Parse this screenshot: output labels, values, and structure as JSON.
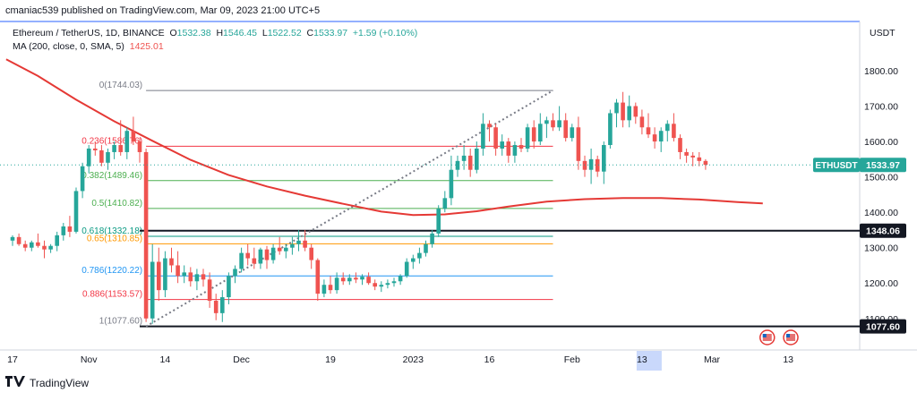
{
  "publisher": "cmaniac539 published on TradingView.com, Mar 09, 2023 21:00 UTC+5",
  "legend": {
    "symbol": "Ethereum / TetherUS, 1D, BINANCE",
    "o_label": "O",
    "o": "1532.38",
    "h_label": "H",
    "h": "1546.45",
    "l_label": "L",
    "l": "1522.52",
    "c_label": "C",
    "c": "1533.97",
    "change": "+1.59 (+0.10%)",
    "ma_label": "MA (200, close, 0, SMA, 5)",
    "ma_value": "1425.01"
  },
  "currency": "USDT",
  "footer_brand": "TradingView",
  "colors": {
    "up": "#26a69a",
    "down": "#ef5350",
    "ma": "#e53935",
    "axis": "#131722",
    "grid": "#f0f3fa"
  },
  "chart_data": {
    "type": "candlestick",
    "ylim": [
      1050,
      1850
    ],
    "y_ticks": [
      "1800.00",
      "1700.00",
      "1600.00",
      "1500.00",
      "1400.00",
      "1300.00",
      "1200.00",
      "1100.00"
    ],
    "y_tick_values": [
      1800,
      1700,
      1600,
      1500,
      1400,
      1300,
      1200,
      1100
    ],
    "x_ticks": [
      "17",
      "Nov",
      "14",
      "Dec",
      "19",
      "2023",
      "16",
      "Feb",
      "13",
      "Mar",
      "13"
    ],
    "x_tick_index": [
      0,
      12,
      24,
      36,
      50,
      63,
      75,
      88,
      99,
      110,
      122
    ],
    "last_price_label": "ETHUSDT",
    "last_price": "1533.97",
    "horizontal_lines": [
      {
        "label": "1348.06",
        "value": 1348.06
      },
      {
        "label": "1077.60",
        "value": 1077.6
      }
    ],
    "fibonacci": {
      "start_index": 21,
      "end_index": 85,
      "levels": [
        {
          "label": "0(1744.03)",
          "ratio": 0,
          "value": 1744.03,
          "color": "#787b86"
        },
        {
          "label": "0.236(1586.76)",
          "ratio": 0.236,
          "value": 1586.76,
          "color": "#f23645"
        },
        {
          "label": "0.382(1489.46)",
          "ratio": 0.382,
          "value": 1489.46,
          "color": "#4caf50"
        },
        {
          "label": "0.5(1410.82)",
          "ratio": 0.5,
          "value": 1410.82,
          "color": "#4caf50"
        },
        {
          "label": "0.618(1332.18)",
          "ratio": 0.618,
          "value": 1332.18,
          "color": "#089981"
        },
        {
          "label": "0.65(1310.85)",
          "ratio": 0.65,
          "value": 1310.85,
          "color": "#ff9800"
        },
        {
          "label": "0.786(1220.22)",
          "ratio": 0.786,
          "value": 1220.22,
          "color": "#2196f3"
        },
        {
          "label": "0.886(1153.57)",
          "ratio": 0.886,
          "value": 1153.57,
          "color": "#f23645"
        },
        {
          "label": "1(1077.60)",
          "ratio": 1,
          "value": 1077.6,
          "color": "#787b86"
        }
      ]
    },
    "trend_line": {
      "from": [
        21,
        1077.6
      ],
      "to": [
        85,
        1744.03
      ]
    },
    "ma_series": [
      {
        "i": -1,
        "v": 1832
      },
      {
        "i": 4,
        "v": 1785
      },
      {
        "i": 10,
        "v": 1718
      },
      {
        "i": 16,
        "v": 1657
      },
      {
        "i": 22,
        "v": 1602
      },
      {
        "i": 28,
        "v": 1548
      },
      {
        "i": 34,
        "v": 1505
      },
      {
        "i": 40,
        "v": 1473
      },
      {
        "i": 46,
        "v": 1447
      },
      {
        "i": 52,
        "v": 1424
      },
      {
        "i": 58,
        "v": 1402
      },
      {
        "i": 63,
        "v": 1392
      },
      {
        "i": 68,
        "v": 1394
      },
      {
        "i": 73,
        "v": 1403
      },
      {
        "i": 78,
        "v": 1416
      },
      {
        "i": 84,
        "v": 1430
      },
      {
        "i": 90,
        "v": 1437
      },
      {
        "i": 96,
        "v": 1440
      },
      {
        "i": 102,
        "v": 1440
      },
      {
        "i": 108,
        "v": 1436
      },
      {
        "i": 114,
        "v": 1429
      },
      {
        "i": 118,
        "v": 1425
      }
    ],
    "candles": [
      [
        1320,
        1335,
        1305,
        1330
      ],
      [
        1330,
        1340,
        1305,
        1310
      ],
      [
        1310,
        1320,
        1290,
        1300
      ],
      [
        1300,
        1320,
        1290,
        1315
      ],
      [
        1315,
        1340,
        1300,
        1305
      ],
      [
        1305,
        1320,
        1270,
        1295
      ],
      [
        1295,
        1310,
        1285,
        1305
      ],
      [
        1305,
        1345,
        1290,
        1335
      ],
      [
        1335,
        1370,
        1320,
        1360
      ],
      [
        1360,
        1390,
        1330,
        1345
      ],
      [
        1345,
        1470,
        1340,
        1460
      ],
      [
        1460,
        1540,
        1440,
        1530
      ],
      [
        1530,
        1590,
        1510,
        1580
      ],
      [
        1580,
        1600,
        1560,
        1575
      ],
      [
        1575,
        1590,
        1530,
        1540
      ],
      [
        1540,
        1580,
        1520,
        1570
      ],
      [
        1570,
        1600,
        1550,
        1590
      ],
      [
        1590,
        1660,
        1560,
        1570
      ],
      [
        1570,
        1640,
        1550,
        1630
      ],
      [
        1630,
        1670,
        1590,
        1600
      ],
      [
        1600,
        1610,
        1540,
        1570
      ],
      [
        1570,
        1580,
        1090,
        1100
      ],
      [
        1100,
        1310,
        1085,
        1260
      ],
      [
        1260,
        1300,
        1150,
        1180
      ],
      [
        1180,
        1290,
        1160,
        1270
      ],
      [
        1270,
        1300,
        1230,
        1250
      ],
      [
        1250,
        1290,
        1200,
        1220
      ],
      [
        1220,
        1250,
        1200,
        1230
      ],
      [
        1230,
        1245,
        1190,
        1205
      ],
      [
        1205,
        1240,
        1180,
        1225
      ],
      [
        1225,
        1240,
        1190,
        1210
      ],
      [
        1210,
        1230,
        1130,
        1150
      ],
      [
        1150,
        1170,
        1095,
        1115
      ],
      [
        1115,
        1180,
        1090,
        1160
      ],
      [
        1160,
        1230,
        1140,
        1220
      ],
      [
        1220,
        1250,
        1200,
        1240
      ],
      [
        1240,
        1300,
        1230,
        1285
      ],
      [
        1285,
        1310,
        1250,
        1270
      ],
      [
        1270,
        1300,
        1240,
        1255
      ],
      [
        1255,
        1300,
        1240,
        1295
      ],
      [
        1295,
        1305,
        1240,
        1265
      ],
      [
        1265,
        1310,
        1255,
        1300
      ],
      [
        1300,
        1330,
        1280,
        1290
      ],
      [
        1290,
        1310,
        1270,
        1300
      ],
      [
        1300,
        1330,
        1280,
        1310
      ],
      [
        1310,
        1350,
        1290,
        1320
      ],
      [
        1320,
        1350,
        1290,
        1300
      ],
      [
        1300,
        1310,
        1240,
        1265
      ],
      [
        1265,
        1270,
        1150,
        1170
      ],
      [
        1170,
        1210,
        1160,
        1195
      ],
      [
        1195,
        1220,
        1170,
        1180
      ],
      [
        1180,
        1230,
        1170,
        1215
      ],
      [
        1215,
        1230,
        1195,
        1205
      ],
      [
        1205,
        1225,
        1195,
        1215
      ],
      [
        1215,
        1230,
        1200,
        1210
      ],
      [
        1210,
        1225,
        1195,
        1218
      ],
      [
        1218,
        1230,
        1195,
        1200
      ],
      [
        1200,
        1210,
        1180,
        1190
      ],
      [
        1190,
        1205,
        1175,
        1195
      ],
      [
        1195,
        1210,
        1185,
        1200
      ],
      [
        1200,
        1215,
        1190,
        1205
      ],
      [
        1205,
        1225,
        1195,
        1220
      ],
      [
        1220,
        1270,
        1215,
        1260
      ],
      [
        1260,
        1280,
        1240,
        1270
      ],
      [
        1270,
        1300,
        1255,
        1285
      ],
      [
        1285,
        1320,
        1275,
        1310
      ],
      [
        1310,
        1350,
        1300,
        1340
      ],
      [
        1340,
        1420,
        1330,
        1410
      ],
      [
        1410,
        1460,
        1400,
        1440
      ],
      [
        1440,
        1560,
        1420,
        1520
      ],
      [
        1520,
        1560,
        1500,
        1545
      ],
      [
        1545,
        1590,
        1520,
        1560
      ],
      [
        1560,
        1580,
        1500,
        1520
      ],
      [
        1520,
        1600,
        1510,
        1580
      ],
      [
        1580,
        1680,
        1560,
        1650
      ],
      [
        1650,
        1660,
        1600,
        1640
      ],
      [
        1640,
        1650,
        1560,
        1580
      ],
      [
        1580,
        1620,
        1560,
        1600
      ],
      [
        1600,
        1610,
        1540,
        1560
      ],
      [
        1560,
        1600,
        1540,
        1590
      ],
      [
        1590,
        1610,
        1570,
        1580
      ],
      [
        1580,
        1650,
        1570,
        1640
      ],
      [
        1640,
        1660,
        1580,
        1600
      ],
      [
        1600,
        1680,
        1590,
        1650
      ],
      [
        1650,
        1670,
        1610,
        1660
      ],
      [
        1660,
        1680,
        1630,
        1640
      ],
      [
        1640,
        1700,
        1630,
        1660
      ],
      [
        1660,
        1680,
        1600,
        1610
      ],
      [
        1610,
        1650,
        1600,
        1640
      ],
      [
        1640,
        1670,
        1520,
        1545
      ],
      [
        1545,
        1560,
        1500,
        1520
      ],
      [
        1520,
        1580,
        1480,
        1550
      ],
      [
        1550,
        1560,
        1500,
        1515
      ],
      [
        1515,
        1600,
        1480,
        1590
      ],
      [
        1590,
        1690,
        1580,
        1680
      ],
      [
        1680,
        1720,
        1640,
        1710
      ],
      [
        1710,
        1740,
        1640,
        1660
      ],
      [
        1660,
        1730,
        1640,
        1700
      ],
      [
        1700,
        1710,
        1650,
        1670
      ],
      [
        1670,
        1690,
        1620,
        1640
      ],
      [
        1640,
        1680,
        1610,
        1620
      ],
      [
        1620,
        1640,
        1580,
        1600
      ],
      [
        1600,
        1640,
        1570,
        1630
      ],
      [
        1630,
        1660,
        1600,
        1650
      ],
      [
        1650,
        1680,
        1600,
        1610
      ],
      [
        1610,
        1620,
        1550,
        1570
      ],
      [
        1570,
        1580,
        1540,
        1560
      ],
      [
        1560,
        1570,
        1530,
        1555
      ],
      [
        1555,
        1570,
        1530,
        1545
      ],
      [
        1545,
        1550,
        1520,
        1534
      ]
    ]
  }
}
